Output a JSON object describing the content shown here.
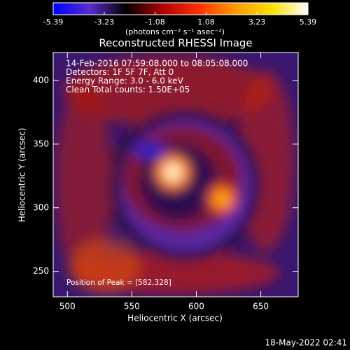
{
  "chart_data": {
    "type": "image",
    "title": "Reconstructed RHESSI Image",
    "xlabel": "Heliocentric X (arcsec)",
    "ylabel": "Heliocentric Y (arcsec)",
    "xlim": [
      489,
      679
    ],
    "xticks": [
      500,
      550,
      600,
      650
    ],
    "ylim": [
      230,
      422
    ],
    "yticks": [
      250,
      300,
      350,
      400
    ],
    "colorbar": {
      "label": "(photons cm⁻² s⁻¹ asec⁻²)",
      "lim": [
        -5.39,
        5.39
      ],
      "ticks": [
        -5.39,
        -3.23,
        -1.08,
        1.08,
        3.23,
        5.39
      ],
      "colors": [
        "#0000ff",
        "#5a2bd0",
        "#000000",
        "#b00000",
        "#ff3000",
        "#ff9a00",
        "#ffe000",
        "#ffffff"
      ]
    },
    "annotations": [
      "14-Feb-2016 07:59:08.000 to 08:05:08.000",
      "Detectors: 1F 5F 7F, Att 0",
      "Energy Range: 3.0 - 6.0 keV",
      "Clean     Total counts: 1.50E+05"
    ],
    "peak_label": "Position of Peak = [582,328]",
    "footer": "18-May-2022 02:41"
  }
}
